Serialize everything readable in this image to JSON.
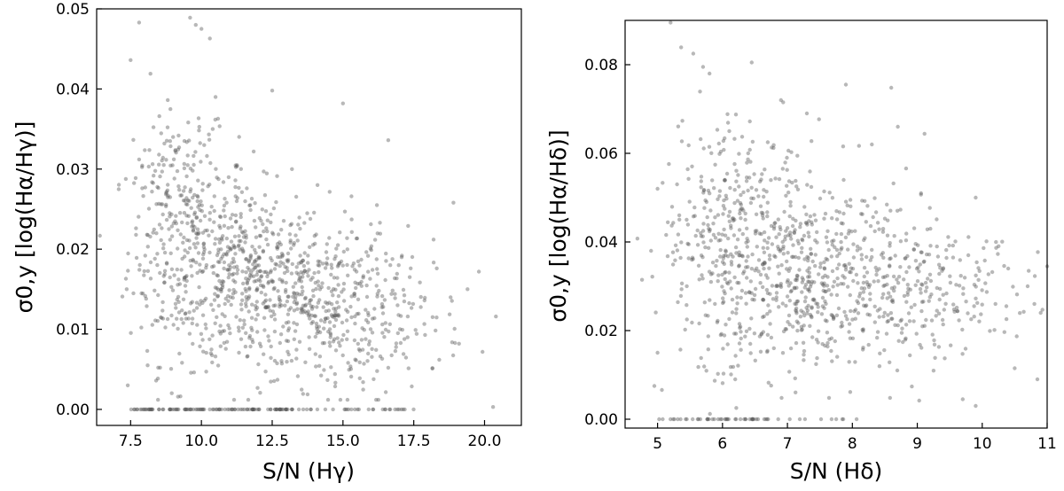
{
  "chart_data": [
    {
      "id": "left",
      "type": "scatter",
      "xlabel": "S/N (Hγ)",
      "ylabel": "σ0,y [log(Hα/Hγ)]",
      "xlim": [
        6.3,
        21.3
      ],
      "ylim": [
        -0.002,
        0.05
      ],
      "xticks": [
        7.5,
        10.0,
        12.5,
        15.0,
        17.5,
        20.0
      ],
      "xtick_labels": [
        "7.5",
        "10.0",
        "12.5",
        "15.0",
        "17.5",
        "20.0"
      ],
      "yticks": [
        0.0,
        0.01,
        0.02,
        0.03,
        0.04,
        0.05
      ],
      "ytick_labels": [
        "0.00",
        "0.01",
        "0.02",
        "0.03",
        "0.04",
        "0.05"
      ],
      "grid": false,
      "marker_color": "#555555",
      "points": [
        [
          7.5,
          0.0436
        ],
        [
          7.8,
          0.0483
        ],
        [
          8.2,
          0.0419
        ],
        [
          9.6,
          0.0489
        ],
        [
          9.8,
          0.048
        ],
        [
          10.0,
          0.0475
        ],
        [
          10.3,
          0.0463
        ],
        [
          10.5,
          0.039
        ],
        [
          12.5,
          0.0398
        ],
        [
          15.0,
          0.0382
        ],
        [
          16.6,
          0.0336
        ],
        [
          7.8,
          0.0312
        ],
        [
          8.5,
          0.0318
        ],
        [
          9.0,
          0.034
        ],
        [
          9.4,
          0.0335
        ],
        [
          10.1,
          0.033
        ],
        [
          10.4,
          0.035
        ],
        [
          11.2,
          0.0286
        ],
        [
          12.2,
          0.0297
        ],
        [
          13.2,
          0.03
        ],
        [
          14.1,
          0.028
        ],
        [
          15.3,
          0.0266
        ],
        [
          16.2,
          0.0255
        ],
        [
          17.3,
          0.0229
        ],
        [
          18.2,
          0.0212
        ],
        [
          18.9,
          0.0258
        ],
        [
          19.4,
          0.015
        ],
        [
          19.8,
          0.0172
        ],
        [
          20.4,
          0.0116
        ],
        [
          20.3,
          0.0003
        ],
        [
          17.9,
          0.0093
        ],
        [
          18.4,
          0.0062
        ],
        [
          19.1,
          0.0082
        ],
        [
          16.6,
          0.0052
        ],
        [
          7.4,
          0.003
        ],
        [
          7.6,
          0.0145
        ],
        [
          8.1,
          0.0055
        ],
        [
          8.4,
          0.0036
        ]
      ],
      "baseline": {
        "y": 0.0,
        "x_from": 7.5,
        "x_to": 17.5,
        "n": 140
      },
      "clusters": [
        {
          "cx": 9.6,
          "sx": 1.1,
          "cy": 0.02,
          "sy": 0.007,
          "n": 320
        },
        {
          "cx": 11.9,
          "sx": 1.3,
          "cy": 0.016,
          "sy": 0.0055,
          "n": 380
        },
        {
          "cx": 14.3,
          "sx": 1.2,
          "cy": 0.013,
          "sy": 0.005,
          "n": 300
        },
        {
          "cx": 16.8,
          "sx": 1.2,
          "cy": 0.012,
          "sy": 0.0045,
          "n": 110
        },
        {
          "cx": 9.0,
          "sx": 0.8,
          "cy": 0.029,
          "sy": 0.004,
          "n": 70
        }
      ]
    },
    {
      "id": "right",
      "type": "scatter",
      "xlabel": "S/N (Hδ)",
      "ylabel": "σ0,y [log(Hα/Hδ)]",
      "xlim": [
        4.5,
        11.0
      ],
      "ylim": [
        -0.002,
        0.09
      ],
      "xticks": [
        5,
        6,
        7,
        8,
        9,
        10,
        11
      ],
      "xtick_labels": [
        "5",
        "6",
        "7",
        "8",
        "9",
        "10",
        "11"
      ],
      "yticks": [
        0.0,
        0.02,
        0.04,
        0.06,
        0.08
      ],
      "ytick_labels": [
        "0.00",
        "0.02",
        "0.04",
        "0.06",
        "0.08"
      ],
      "grid": false,
      "marker_color": "#555555",
      "points": [
        [
          5.2,
          0.0895
        ],
        [
          5.55,
          0.0825
        ],
        [
          5.7,
          0.0795
        ],
        [
          5.8,
          0.078
        ],
        [
          6.45,
          0.0805
        ],
        [
          7.9,
          0.0755
        ],
        [
          8.6,
          0.0748
        ],
        [
          5.3,
          0.053
        ],
        [
          5.0,
          0.052
        ],
        [
          4.9,
          0.038
        ],
        [
          5.0,
          0.015
        ],
        [
          4.95,
          0.0075
        ],
        [
          9.9,
          0.05
        ],
        [
          10.4,
          0.034
        ],
        [
          10.7,
          0.03
        ],
        [
          10.9,
          0.024
        ],
        [
          10.85,
          0.009
        ],
        [
          11.0,
          0.0345
        ],
        [
          10.5,
          0.0115
        ],
        [
          9.7,
          0.0045
        ],
        [
          9.9,
          0.003
        ],
        [
          6.9,
          0.072
        ],
        [
          7.3,
          0.069
        ],
        [
          8.3,
          0.062
        ],
        [
          8.7,
          0.066
        ]
      ],
      "baseline": {
        "y": 0.0,
        "x_from": 5.0,
        "x_to": 8.1,
        "n": 55
      },
      "clusters": [
        {
          "cx": 6.1,
          "sx": 0.55,
          "cy": 0.04,
          "sy": 0.014,
          "n": 340
        },
        {
          "cx": 7.2,
          "sx": 0.65,
          "cy": 0.034,
          "sy": 0.011,
          "n": 380
        },
        {
          "cx": 8.5,
          "sx": 0.7,
          "cy": 0.03,
          "sy": 0.009,
          "n": 260
        },
        {
          "cx": 9.7,
          "sx": 0.6,
          "cy": 0.028,
          "sy": 0.007,
          "n": 90
        }
      ]
    }
  ]
}
